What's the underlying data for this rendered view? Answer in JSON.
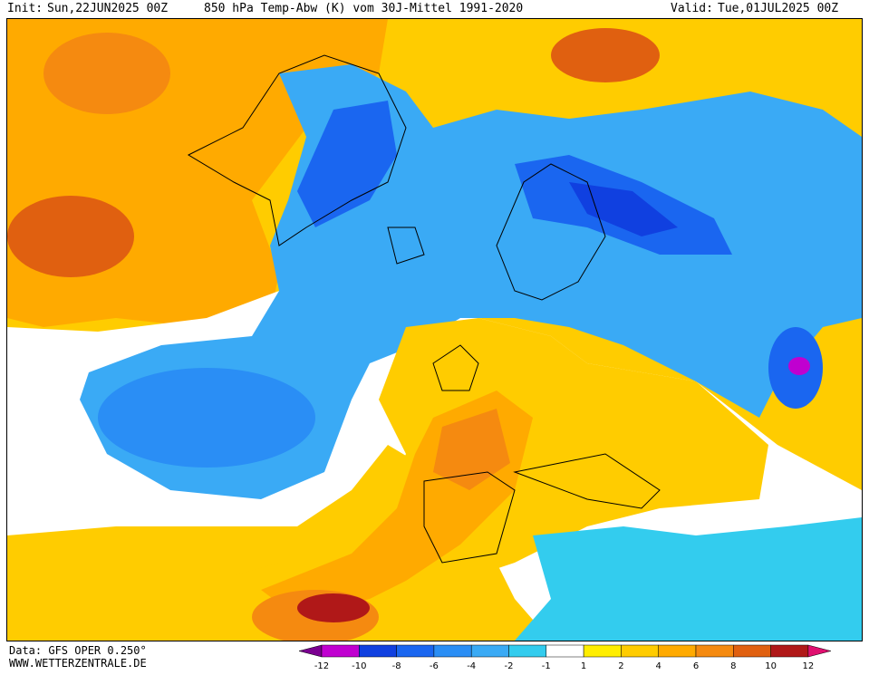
{
  "header": {
    "init_label": "Init:",
    "init_value": "Sun,22JUN2025 00Z",
    "title": "850 hPa Temp-Abw (K) vom 30J-Mittel 1991-2020",
    "valid_label": "Valid:",
    "valid_value": "Tue,01JUL2025 00Z"
  },
  "footer": {
    "data_source": "Data: GFS OPER 0.250°",
    "website": "WWW.WETTERZENTRALE.DE"
  },
  "legend": {
    "ticks": [
      "-12",
      "-10",
      "-8",
      "-6",
      "-4",
      "-2",
      "-1",
      "1",
      "2",
      "4",
      "6",
      "8",
      "10",
      "12"
    ],
    "colors": [
      "#7a0090",
      "#c000d0",
      "#1040e0",
      "#1a66f0",
      "#2a8ef5",
      "#3aaaf5",
      "#33ccee",
      "#ffffff",
      "#ffee00",
      "#ffcc00",
      "#ffaa00",
      "#f58a10",
      "#e06010",
      "#b01818",
      "#e01070"
    ]
  }
}
